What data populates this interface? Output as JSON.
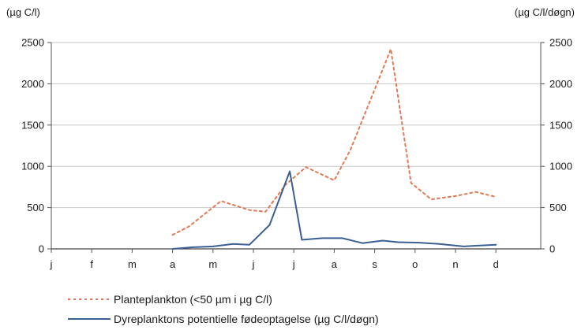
{
  "chart_data": {
    "type": "line",
    "title": "",
    "categories": [
      "j",
      "f",
      "m",
      "a",
      "m",
      "j",
      "j",
      "a",
      "s",
      "o",
      "n",
      "d"
    ],
    "y_left_label": "(µg C/l)",
    "y_right_label": "(µg C/l/døgn)",
    "ylim": [
      0,
      2500
    ],
    "y_ticks": [
      0,
      500,
      1000,
      1500,
      2000,
      2500
    ],
    "grid": "horizontal",
    "legend_position": "bottom",
    "series": [
      {
        "name": "Planteplankton (<50 µm i µg C/l)",
        "color": "#e07a55",
        "style": "dotted",
        "axis": "left",
        "x": [
          3.0,
          3.4,
          4.2,
          4.9,
          5.3,
          5.8,
          6.3,
          7.0,
          7.4,
          8.4,
          8.9,
          9.4,
          10.0,
          10.5,
          11.0
        ],
        "y": [
          170,
          270,
          580,
          470,
          450,
          780,
          990,
          830,
          1200,
          2420,
          800,
          600,
          640,
          690,
          630
        ]
      },
      {
        "name": "Dyreplanktons potentielle fødeoptagelse (µg C/l/døgn)",
        "color": "#3b5f95",
        "style": "solid",
        "axis": "right",
        "x": [
          3.0,
          3.5,
          4.0,
          4.5,
          4.9,
          5.4,
          5.9,
          6.2,
          6.7,
          7.2,
          7.7,
          8.2,
          8.6,
          9.1,
          9.6,
          10.2,
          10.6,
          11.0
        ],
        "y": [
          0,
          20,
          30,
          60,
          50,
          290,
          940,
          110,
          130,
          130,
          70,
          100,
          80,
          75,
          60,
          30,
          40,
          50
        ]
      }
    ]
  }
}
